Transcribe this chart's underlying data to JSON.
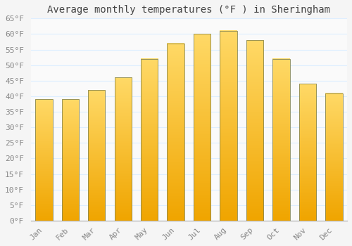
{
  "title": "Average monthly temperatures (°F ) in Sheringham",
  "months": [
    "Jan",
    "Feb",
    "Mar",
    "Apr",
    "May",
    "Jun",
    "Jul",
    "Aug",
    "Sep",
    "Oct",
    "Nov",
    "Dec"
  ],
  "values": [
    39,
    39,
    42,
    46,
    52,
    57,
    60,
    61,
    58,
    52,
    44,
    41
  ],
  "bar_color_top": "#FFD966",
  "bar_color_bottom": "#F0A500",
  "bar_edge_color": "#888855",
  "background_color": "#F5F5F5",
  "plot_bg_color": "#FAFAFA",
  "grid_color": "#DDEEFF",
  "ylim": [
    0,
    65
  ],
  "yticks": [
    0,
    5,
    10,
    15,
    20,
    25,
    30,
    35,
    40,
    45,
    50,
    55,
    60,
    65
  ],
  "title_fontsize": 10,
  "tick_fontsize": 8,
  "tick_color": "#888888",
  "title_color": "#444444"
}
